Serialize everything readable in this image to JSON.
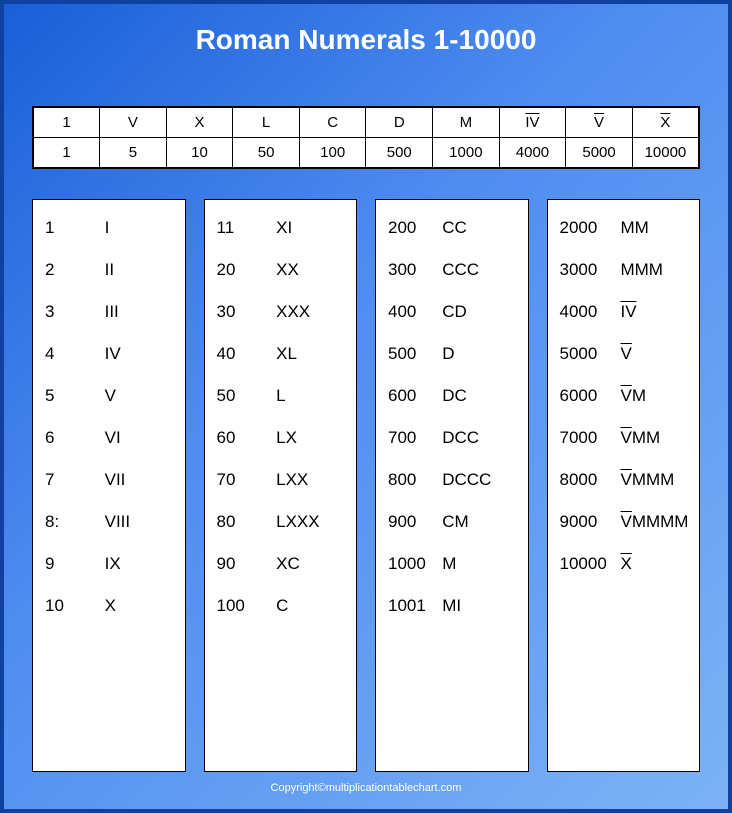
{
  "title": "Roman Numerals 1-10000",
  "header": {
    "romans": [
      "1",
      "V",
      "X",
      "L",
      "C",
      "D",
      "M",
      "I̅V̅",
      "V̅",
      "X̅"
    ],
    "numbers": [
      "1",
      "5",
      "10",
      "50",
      "100",
      "500",
      "1000",
      "4000",
      "5000",
      "10000"
    ]
  },
  "columns": [
    {
      "rows": [
        {
          "n": "1",
          "r": "I"
        },
        {
          "n": "2",
          "r": "II"
        },
        {
          "n": "3",
          "r": "III"
        },
        {
          "n": "4",
          "r": "IV"
        },
        {
          "n": "5",
          "r": "V"
        },
        {
          "n": "6",
          "r": "VI"
        },
        {
          "n": "7",
          "r": "VII"
        },
        {
          "n": "8:",
          "r": "VIII"
        },
        {
          "n": "9",
          "r": "IX"
        },
        {
          "n": "10",
          "r": "X"
        }
      ]
    },
    {
      "rows": [
        {
          "n": "11",
          "r": "XI"
        },
        {
          "n": "20",
          "r": "XX"
        },
        {
          "n": "30",
          "r": "XXX"
        },
        {
          "n": "40",
          "r": "XL"
        },
        {
          "n": "50",
          "r": "L"
        },
        {
          "n": "60",
          "r": "LX"
        },
        {
          "n": "70",
          "r": "LXX"
        },
        {
          "n": "80",
          "r": "LXXX"
        },
        {
          "n": "90",
          "r": "XC"
        },
        {
          "n": "100",
          "r": "C"
        }
      ]
    },
    {
      "rows": [
        {
          "n": "200",
          "r": "CC"
        },
        {
          "n": "300",
          "r": "CCC"
        },
        {
          "n": "400",
          "r": "CD"
        },
        {
          "n": "500",
          "r": "D"
        },
        {
          "n": "600",
          "r": "DC"
        },
        {
          "n": "700",
          "r": "DCC"
        },
        {
          "n": "800",
          "r": "DCCC"
        },
        {
          "n": "900",
          "r": "CM"
        },
        {
          "n": "1000",
          "r": "M"
        },
        {
          "n": "1001",
          "r": "MI"
        }
      ]
    },
    {
      "rows": [
        {
          "n": "2000",
          "r": "MM"
        },
        {
          "n": "3000",
          "r": "MMM"
        },
        {
          "n": "4000",
          "r": "",
          "ov": "IV"
        },
        {
          "n": "5000",
          "r": "",
          "ov": "V"
        },
        {
          "n": "6000",
          "r": "M",
          "ov": "V",
          "ovfirst": true
        },
        {
          "n": "7000",
          "r": "MM",
          "ov": "V",
          "ovfirst": true
        },
        {
          "n": "8000",
          "r": "MMM",
          "ov": "V",
          "ovfirst": true
        },
        {
          "n": "9000",
          "r": "MMMM",
          "ov": "V",
          "ovfirst": true
        },
        {
          "n": "10000",
          "r": "",
          "ov": "X"
        }
      ]
    }
  ],
  "copyright": "Copyright©multiplicationtablechart.com",
  "colors": {
    "bg_grad_start": "#1a5fd8",
    "bg_grad_mid": "#4d8bf0",
    "bg_grad_end": "#7db3f5",
    "border": "#1040a0",
    "panel_bg": "#ffffff",
    "text": "#000000",
    "title_text": "#ffffff"
  },
  "fonts": {
    "title_size": 28,
    "cell_size": 17,
    "header_cell_size": 15,
    "copyright_size": 11
  }
}
